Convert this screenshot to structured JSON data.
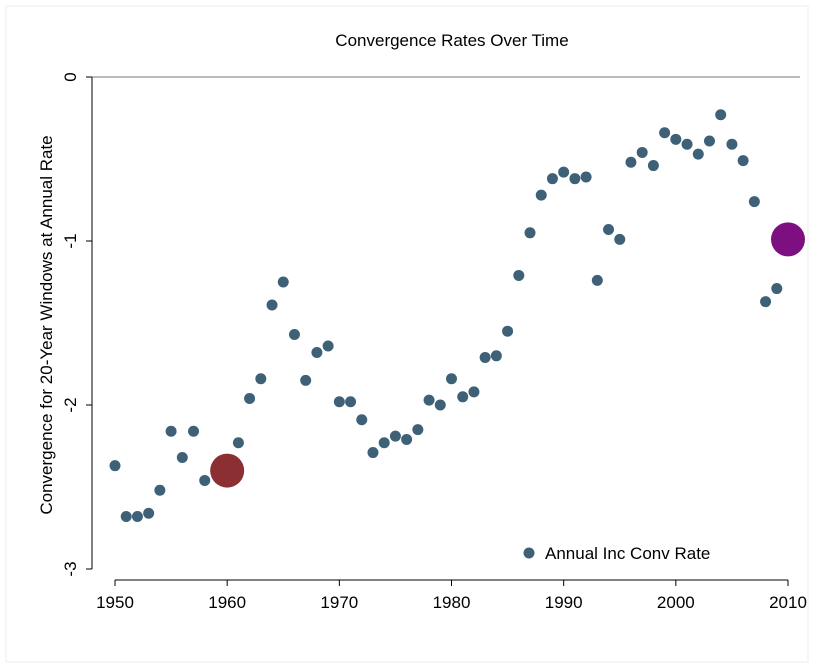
{
  "chart_data": {
    "type": "scatter",
    "title": "Convergence Rates Over Time",
    "y_label": "Convergence for 20-Year Windows at Annual Rate",
    "xlim": [
      1950,
      2010
    ],
    "xticks": [
      1950,
      1960,
      1970,
      1980,
      1990,
      2000,
      2010
    ],
    "ylim": [
      -3,
      0
    ],
    "yticks": [
      0,
      -1,
      -2,
      -3
    ],
    "hline": 0,
    "legend": "bottom-right",
    "series": [
      {
        "name": "Annual Inc Conv Rate",
        "color": "#3e6178",
        "x": [
          1950,
          1951,
          1952,
          1953,
          1954,
          1955,
          1956,
          1957,
          1958,
          1960,
          1961,
          1962,
          1963,
          1964,
          1965,
          1966,
          1967,
          1968,
          1969,
          1970,
          1971,
          1972,
          1973,
          1974,
          1975,
          1976,
          1977,
          1978,
          1979,
          1980,
          1981,
          1982,
          1983,
          1984,
          1985,
          1986,
          1987,
          1988,
          1989,
          1990,
          1991,
          1992,
          1993,
          1994,
          1995,
          1996,
          1997,
          1998,
          1999,
          2000,
          2001,
          2002,
          2003,
          2004,
          2005,
          2006,
          2007,
          2008,
          2009
        ],
        "values": [
          -2.37,
          -2.68,
          -2.68,
          -2.66,
          -2.52,
          -2.16,
          -2.32,
          -2.16,
          -2.46,
          -2.4,
          -2.23,
          -1.96,
          -1.84,
          -1.39,
          -1.25,
          -1.57,
          -1.85,
          -1.68,
          -1.64,
          -1.98,
          -1.98,
          -2.09,
          -2.29,
          -2.23,
          -2.19,
          -2.21,
          -2.15,
          -1.97,
          -2.0,
          -1.84,
          -1.95,
          -1.92,
          -1.71,
          -1.7,
          -1.55,
          -1.21,
          -0.95,
          -0.72,
          -0.62,
          -0.58,
          -0.62,
          -0.61,
          -1.24,
          -0.93,
          -0.99,
          -0.52,
          -0.46,
          -0.54,
          -0.34,
          -0.38,
          -0.41,
          -0.47,
          -0.39,
          -0.23,
          -0.41,
          -0.51,
          -0.76,
          -1.37,
          -1.29
        ]
      }
    ],
    "highlights": [
      {
        "x": 1960,
        "value": -2.4,
        "color": "#8b2f33"
      },
      {
        "x": 2010,
        "value": -0.99,
        "color": "#7d0f80"
      }
    ]
  }
}
